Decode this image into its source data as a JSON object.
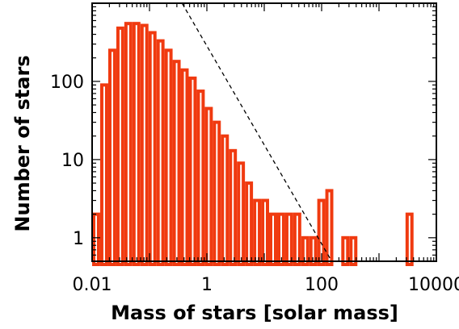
{
  "chart_data": {
    "type": "bar",
    "xlabel": "Mass of stars [solar mass]",
    "ylabel": "Number of stars",
    "x_scale": "log",
    "y_scale": "log",
    "xlim": [
      0.01,
      10000
    ],
    "ylim": [
      0.5,
      1000
    ],
    "x_ticks": [
      "0.01",
      "1",
      "100",
      "10000"
    ],
    "y_ticks": [
      "1",
      "10",
      "100"
    ],
    "bar_color": "#f03a10",
    "bins": [
      {
        "x0": 0.01,
        "x1": 0.0138,
        "count": 2
      },
      {
        "x0": 0.0138,
        "x1": 0.0191,
        "count": 90
      },
      {
        "x0": 0.0191,
        "x1": 0.0264,
        "count": 250
      },
      {
        "x0": 0.0264,
        "x1": 0.0364,
        "count": 480
      },
      {
        "x0": 0.0364,
        "x1": 0.0503,
        "count": 550
      },
      {
        "x0": 0.0503,
        "x1": 0.0695,
        "count": 550
      },
      {
        "x0": 0.0695,
        "x1": 0.0959,
        "count": 520
      },
      {
        "x0": 0.0959,
        "x1": 0.1326,
        "count": 420
      },
      {
        "x0": 0.1326,
        "x1": 0.183,
        "count": 330
      },
      {
        "x0": 0.183,
        "x1": 0.2527,
        "count": 250
      },
      {
        "x0": 0.2527,
        "x1": 0.349,
        "count": 180
      },
      {
        "x0": 0.349,
        "x1": 0.482,
        "count": 140
      },
      {
        "x0": 0.482,
        "x1": 0.665,
        "count": 110
      },
      {
        "x0": 0.665,
        "x1": 0.919,
        "count": 75
      },
      {
        "x0": 0.919,
        "x1": 1.27,
        "count": 45
      },
      {
        "x0": 1.27,
        "x1": 1.75,
        "count": 30
      },
      {
        "x0": 1.75,
        "x1": 2.42,
        "count": 20
      },
      {
        "x0": 2.42,
        "x1": 3.34,
        "count": 13
      },
      {
        "x0": 3.34,
        "x1": 4.61,
        "count": 9
      },
      {
        "x0": 4.61,
        "x1": 6.37,
        "count": 5
      },
      {
        "x0": 6.37,
        "x1": 8.8,
        "count": 3
      },
      {
        "x0": 8.8,
        "x1": 12.15,
        "count": 3
      },
      {
        "x0": 12.15,
        "x1": 16.8,
        "count": 2
      },
      {
        "x0": 16.8,
        "x1": 23.2,
        "count": 2
      },
      {
        "x0": 23.2,
        "x1": 32.0,
        "count": 2
      },
      {
        "x0": 32.0,
        "x1": 44.2,
        "count": 2
      },
      {
        "x0": 44.2,
        "x1": 61.0,
        "count": 1
      },
      {
        "x0": 61.0,
        "x1": 84.0,
        "count": 1
      },
      {
        "x0": 84.0,
        "x1": 116.0,
        "count": 3
      },
      {
        "x0": 116.0,
        "x1": 160.0,
        "count": 4
      },
      {
        "x0": 220.0,
        "x1": 304.0,
        "count": 1
      },
      {
        "x0": 304.0,
        "x1": 420.0,
        "count": 1
      },
      {
        "x0": 2900.0,
        "x1": 4000.0,
        "count": 2
      }
    ],
    "fit_line": {
      "x": [
        0.37,
        150
      ],
      "y": [
        1000,
        0.5
      ]
    }
  }
}
